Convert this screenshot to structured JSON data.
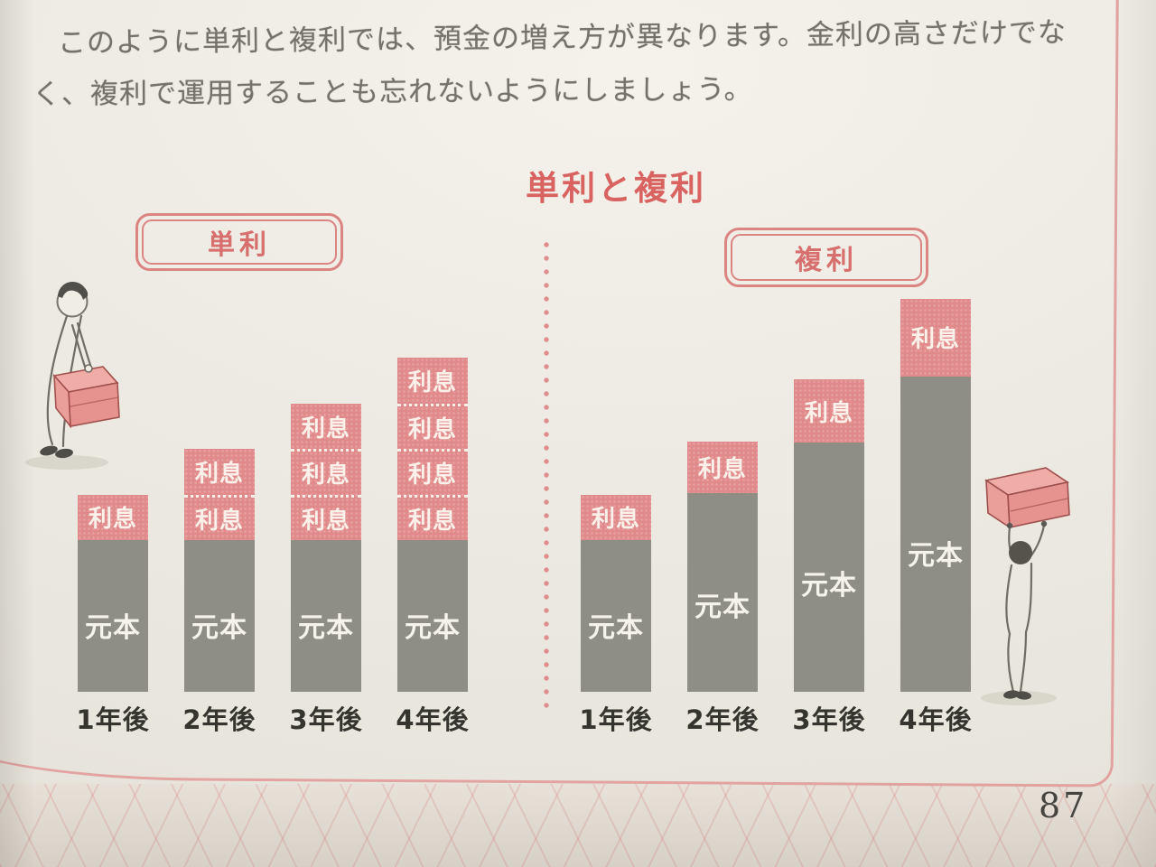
{
  "page": {
    "paragraph_line1": "このように単利と複利では、預金の増え方が異なります。金利の高さだけでな",
    "paragraph_line2": "く、複利で運用することも忘れないようにしましょう。",
    "page_number": "87"
  },
  "chart_data": {
    "type": "bar",
    "subtype": "stacked-grouped",
    "title": "単利と複利",
    "segment_labels": {
      "principal": "元本",
      "interest": "利息"
    },
    "value_unit": "relative units, first-year principal = 100",
    "groups": [
      {
        "label": "単利",
        "categories": [
          "1年後",
          "2年後",
          "3年後",
          "4年後"
        ],
        "bars": [
          {
            "principal": 100,
            "interest_blocks": [
              30
            ]
          },
          {
            "principal": 100,
            "interest_blocks": [
              30,
              30
            ]
          },
          {
            "principal": 100,
            "interest_blocks": [
              30,
              30,
              30
            ]
          },
          {
            "principal": 100,
            "interest_blocks": [
              30,
              30,
              30,
              30
            ]
          }
        ]
      },
      {
        "label": "複利",
        "categories": [
          "1年後",
          "2年後",
          "3年後",
          "4年後"
        ],
        "bars": [
          {
            "principal": 100,
            "interest_blocks": [
              30
            ]
          },
          {
            "principal": 131,
            "interest_blocks": [
              34
            ]
          },
          {
            "principal": 164,
            "interest_blocks": [
              42
            ]
          },
          {
            "principal": 208,
            "interest_blocks": [
              51
            ]
          }
        ]
      }
    ],
    "layout": {
      "divider": "vertical dotted line between groups",
      "legend": "none"
    },
    "colors": {
      "interest_block": "#e18a8b",
      "principal_block": "#8e8e85",
      "title_red": "#d96361",
      "frame_pink": "#e2a3a1",
      "page_cream": "#edebe3"
    },
    "illustrations": {
      "left": "person-carrying-box",
      "right": "person-lifting-box-overhead"
    }
  }
}
